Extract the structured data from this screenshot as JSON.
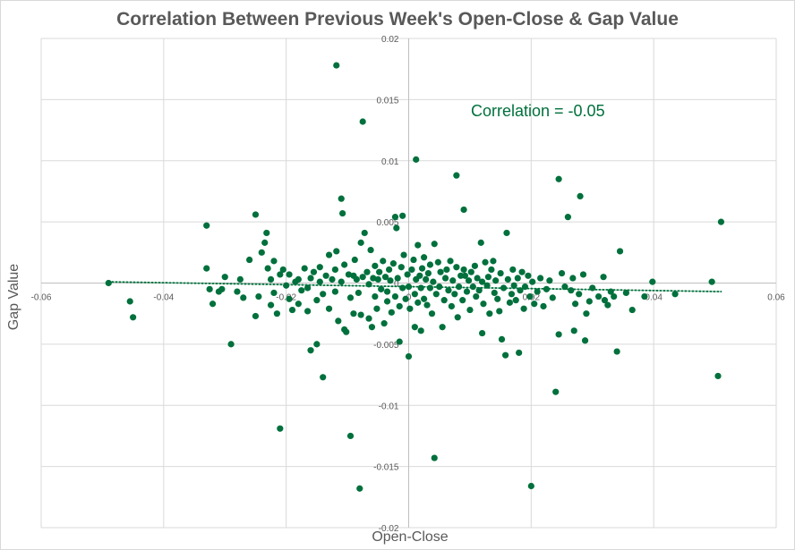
{
  "chart_data": {
    "type": "scatter",
    "title": "Correlation Between Previous Week's Open-Close & Gap Value",
    "xlabel": "Open-Close",
    "ylabel": "Gap Value",
    "xlim": [
      -0.06,
      0.06
    ],
    "ylim": [
      -0.02,
      0.02
    ],
    "x_ticks": [
      "-0.06",
      "-0.04",
      "-0.02",
      "0",
      "0.02",
      "0.04",
      "0.06"
    ],
    "y_ticks": [
      "0.02",
      "0.015",
      "0.01",
      "0.005",
      "0",
      "-0.005",
      "-0.01",
      "-0.015",
      "-0.02"
    ],
    "grid": true,
    "annotation": "Correlation = -0.05",
    "marker_color": "#00703c",
    "trendline": {
      "style": "dotted-linear",
      "start": [
        -0.049,
        0.0001
      ],
      "end": [
        0.051,
        -0.0007
      ]
    },
    "points": [
      [
        -0.049,
        0.0
      ],
      [
        -0.0455,
        -0.0015
      ],
      [
        -0.045,
        -0.0028
      ],
      [
        -0.033,
        0.0047
      ],
      [
        -0.033,
        0.0012
      ],
      [
        -0.0325,
        -0.0005
      ],
      [
        -0.032,
        -0.0017
      ],
      [
        -0.031,
        -0.0007
      ],
      [
        -0.0305,
        -0.0005
      ],
      [
        -0.03,
        0.0005
      ],
      [
        -0.029,
        -0.005
      ],
      [
        -0.028,
        -0.0007
      ],
      [
        -0.0275,
        0.0003
      ],
      [
        -0.027,
        -0.0012
      ],
      [
        -0.026,
        0.0019
      ],
      [
        -0.025,
        -0.0027
      ],
      [
        -0.025,
        0.0056
      ],
      [
        -0.0245,
        -0.0011
      ],
      [
        -0.024,
        0.0025
      ],
      [
        -0.0235,
        0.0033
      ],
      [
        -0.0232,
        0.0041
      ],
      [
        -0.023,
        0.0012
      ],
      [
        -0.0225,
        -0.0018
      ],
      [
        -0.0225,
        0.0003
      ],
      [
        -0.022,
        -0.0008
      ],
      [
        -0.022,
        0.0018
      ],
      [
        -0.0215,
        -0.0025
      ],
      [
        -0.021,
        -0.0119
      ],
      [
        -0.021,
        0.0007
      ],
      [
        -0.0205,
        0.0011
      ],
      [
        -0.02,
        -0.0002
      ],
      [
        -0.0195,
        -0.0013
      ],
      [
        -0.0195,
        0.0007
      ],
      [
        -0.019,
        -0.0022
      ],
      [
        -0.0185,
        0.0001
      ],
      [
        -0.018,
        -0.0017
      ],
      [
        -0.018,
        0.0003
      ],
      [
        -0.0175,
        -0.0006
      ],
      [
        -0.017,
        0.0012
      ],
      [
        -0.0165,
        -0.0023
      ],
      [
        -0.0165,
        -0.0004
      ],
      [
        -0.016,
        -0.0055
      ],
      [
        -0.016,
        0.0004
      ],
      [
        -0.0155,
        0.0009
      ],
      [
        -0.015,
        -0.005
      ],
      [
        -0.015,
        -0.0014
      ],
      [
        -0.0145,
        0.0001
      ],
      [
        -0.0145,
        0.0013
      ],
      [
        -0.014,
        -0.0077
      ],
      [
        -0.014,
        -0.0009
      ],
      [
        -0.0135,
        0.0006
      ],
      [
        -0.013,
        0.0023
      ],
      [
        -0.013,
        -0.0021
      ],
      [
        -0.0125,
        0.0003
      ],
      [
        -0.012,
        -0.0007
      ],
      [
        -0.012,
        0.0011
      ],
      [
        -0.0118,
        0.0026
      ],
      [
        -0.0115,
        -0.0031
      ],
      [
        -0.011,
        0.0001
      ],
      [
        -0.011,
        0.0069
      ],
      [
        -0.0108,
        0.0057
      ],
      [
        -0.0105,
        -0.0038
      ],
      [
        -0.0105,
        0.0015
      ],
      [
        -0.0102,
        -0.004
      ],
      [
        -0.0098,
        0.0007
      ],
      [
        -0.0095,
        -0.0012
      ],
      [
        -0.0095,
        -0.0125
      ],
      [
        -0.009,
        0.0006
      ],
      [
        -0.009,
        -0.0025
      ],
      [
        -0.0088,
        0.0019
      ],
      [
        -0.0085,
        0.0003
      ],
      [
        -0.0082,
        -0.0008
      ],
      [
        -0.008,
        -0.0168
      ],
      [
        -0.0078,
        -0.0026
      ],
      [
        -0.0078,
        0.0033
      ],
      [
        -0.0075,
        0.0005
      ],
      [
        -0.0075,
        0.0132
      ],
      [
        -0.0072,
        0.0041
      ],
      [
        -0.0068,
        0.0009
      ],
      [
        -0.0065,
        -0.0001
      ],
      [
        -0.0065,
        -0.0029
      ],
      [
        -0.0062,
        0.0027
      ],
      [
        -0.006,
        -0.0036
      ],
      [
        -0.0058,
        0.0004
      ],
      [
        -0.0055,
        -0.0011
      ],
      [
        -0.0055,
        0.0014
      ],
      [
        -0.0052,
        -0.0021
      ],
      [
        -0.005,
        0.0003
      ],
      [
        -0.0048,
        0.0009
      ],
      [
        -0.0045,
        -0.0005
      ],
      [
        -0.0042,
        0.0018
      ],
      [
        -0.004,
        -0.0033
      ],
      [
        -0.0038,
        0.0005
      ],
      [
        -0.0035,
        -0.0007
      ],
      [
        -0.0035,
        -0.0015
      ],
      [
        -0.0032,
        0.0011
      ],
      [
        -0.003,
        0.0002
      ],
      [
        -0.0028,
        -0.0024
      ],
      [
        -0.0025,
        0.0016
      ],
      [
        -0.0022,
        -0.0011
      ],
      [
        -0.0022,
        0.0054
      ],
      [
        -0.002,
        0.0045
      ],
      [
        -0.0018,
        0.0004
      ],
      [
        -0.0015,
        -0.0019
      ],
      [
        -0.0015,
        -0.0048
      ],
      [
        -0.0012,
        0.0013
      ],
      [
        -0.001,
        -0.0004
      ],
      [
        -0.001,
        0.0055
      ],
      [
        -0.0008,
        0.0023
      ],
      [
        -0.0005,
        -0.0013
      ],
      [
        -0.0002,
        0.0007
      ],
      [
        0.0,
        -0.0003
      ],
      [
        0.0,
        -0.006
      ],
      [
        0.0002,
        -0.0021
      ],
      [
        0.0005,
        0.0011
      ],
      [
        0.0008,
        0.0019
      ],
      [
        0.001,
        -0.0009
      ],
      [
        0.001,
        -0.0036
      ],
      [
        0.0012,
        0.0003
      ],
      [
        0.0015,
        -0.0016
      ],
      [
        0.0015,
        0.0031
      ],
      [
        0.0018,
        0.0006
      ],
      [
        0.002,
        -0.0004
      ],
      [
        0.002,
        -0.0039
      ],
      [
        0.0022,
        0.0012
      ],
      [
        0.0025,
        0.0021
      ],
      [
        0.0025,
        -0.0013
      ],
      [
        0.0028,
        0.0003
      ],
      [
        0.003,
        -0.0018
      ],
      [
        0.0032,
        0.0008
      ],
      [
        0.0035,
        -0.0004
      ],
      [
        0.0035,
        0.0015
      ],
      [
        0.0038,
        -0.0025
      ],
      [
        0.004,
        0.0001
      ],
      [
        0.0042,
        -0.0143
      ],
      [
        0.0042,
        0.0032
      ],
      [
        0.0045,
        -0.0009
      ],
      [
        0.0048,
        0.0017
      ],
      [
        0.005,
        -0.0003
      ],
      [
        0.0052,
        0.0009
      ],
      [
        0.0055,
        -0.0036
      ],
      [
        0.0058,
        -0.0014
      ],
      [
        0.006,
        0.0004
      ],
      [
        0.0062,
        0.0011
      ],
      [
        0.0065,
        -0.0006
      ],
      [
        0.0068,
        0.0018
      ],
      [
        0.007,
        -0.0019
      ],
      [
        0.0072,
        0.0002
      ],
      [
        0.0075,
        -0.0009
      ],
      [
        0.0078,
        0.0088
      ],
      [
        0.0078,
        0.0013
      ],
      [
        0.008,
        -0.0028
      ],
      [
        0.0082,
        -0.0003
      ],
      [
        0.0085,
        0.0006
      ],
      [
        0.0088,
        -0.0014
      ],
      [
        0.009,
        0.0011
      ],
      [
        0.0092,
        0.0006
      ],
      [
        0.0095,
        -0.0007
      ],
      [
        0.0098,
        0.0002
      ],
      [
        0.01,
        -0.0022
      ],
      [
        0.0102,
        0.0009
      ],
      [
        0.0105,
        -0.0003
      ],
      [
        0.0108,
        0.0014
      ],
      [
        0.011,
        -0.0011
      ],
      [
        0.0112,
        0.0004
      ],
      [
        0.0115,
        -0.0006
      ],
      [
        0.0118,
        0.0033
      ],
      [
        0.012,
        -0.0041
      ],
      [
        0.012,
        0.0001
      ],
      [
        0.0122,
        -0.0017
      ],
      [
        0.0125,
        0.0017
      ],
      [
        0.0128,
        -0.0002
      ],
      [
        0.013,
        0.0005
      ],
      [
        0.0132,
        -0.0025
      ],
      [
        0.0135,
        0.0011
      ],
      [
        0.0138,
        0.0018
      ],
      [
        0.014,
        -0.0008
      ],
      [
        0.0142,
        0.0002
      ],
      [
        0.0145,
        -0.0013
      ],
      [
        0.0148,
        -0.0023
      ],
      [
        0.015,
        0.0008
      ],
      [
        0.0152,
        -0.0046
      ],
      [
        0.0155,
        -0.0004
      ],
      [
        0.0158,
        -0.0059
      ],
      [
        0.016,
        0.0041
      ],
      [
        0.0162,
        0.0003
      ],
      [
        0.0165,
        -0.0016
      ],
      [
        0.0168,
        -0.0009
      ],
      [
        0.017,
        0.0011
      ],
      [
        0.0172,
        -0.0002
      ],
      [
        0.0175,
        -0.0014
      ],
      [
        0.0178,
        0.0004
      ],
      [
        0.018,
        -0.0057
      ],
      [
        0.0182,
        -0.0006
      ],
      [
        0.0185,
        0.0009
      ],
      [
        0.0188,
        -0.0021
      ],
      [
        0.019,
        -0.0003
      ],
      [
        0.0195,
        0.0006
      ],
      [
        0.0198,
        -0.0011
      ],
      [
        0.02,
        -0.0166
      ],
      [
        0.0202,
        0.0001
      ],
      [
        0.0205,
        -0.0017
      ],
      [
        0.021,
        -0.0007
      ],
      [
        0.0215,
        0.0004
      ],
      [
        0.022,
        -0.0019
      ],
      [
        0.0225,
        -0.0005
      ],
      [
        0.023,
        0.0002
      ],
      [
        0.0235,
        -0.0012
      ],
      [
        0.024,
        -0.0089
      ],
      [
        0.0245,
        0.0085
      ],
      [
        0.0245,
        -0.0042
      ],
      [
        0.025,
        0.0008
      ],
      [
        0.0255,
        -0.0003
      ],
      [
        0.026,
        0.0054
      ],
      [
        0.0265,
        -0.0006
      ],
      [
        0.0268,
        0.0004
      ],
      [
        0.027,
        -0.0039
      ],
      [
        0.0272,
        -0.0017
      ],
      [
        0.0278,
        -0.0009
      ],
      [
        0.028,
        0.0071
      ],
      [
        0.0285,
        0.0007
      ],
      [
        0.0288,
        -0.0047
      ],
      [
        0.029,
        -0.0025
      ],
      [
        0.0295,
        -0.0015
      ],
      [
        0.03,
        -0.0004
      ],
      [
        0.031,
        -0.0011
      ],
      [
        0.0318,
        0.0005
      ],
      [
        0.032,
        -0.0014
      ],
      [
        0.0325,
        -0.0018
      ],
      [
        0.033,
        -0.0007
      ],
      [
        0.0335,
        -0.0011
      ],
      [
        0.034,
        -0.0056
      ],
      [
        0.0345,
        0.0026
      ],
      [
        0.0355,
        -0.0008
      ],
      [
        0.0365,
        -0.0022
      ],
      [
        0.0385,
        -0.0011
      ],
      [
        0.0398,
        0.0001
      ],
      [
        0.0435,
        -0.0009
      ],
      [
        0.0495,
        0.0001
      ],
      [
        0.0505,
        -0.0076
      ],
      [
        0.051,
        0.005
      ],
      [
        0.009,
        0.006
      ],
      [
        0.0012,
        0.0101
      ],
      [
        -0.0118,
        0.0178
      ]
    ]
  }
}
